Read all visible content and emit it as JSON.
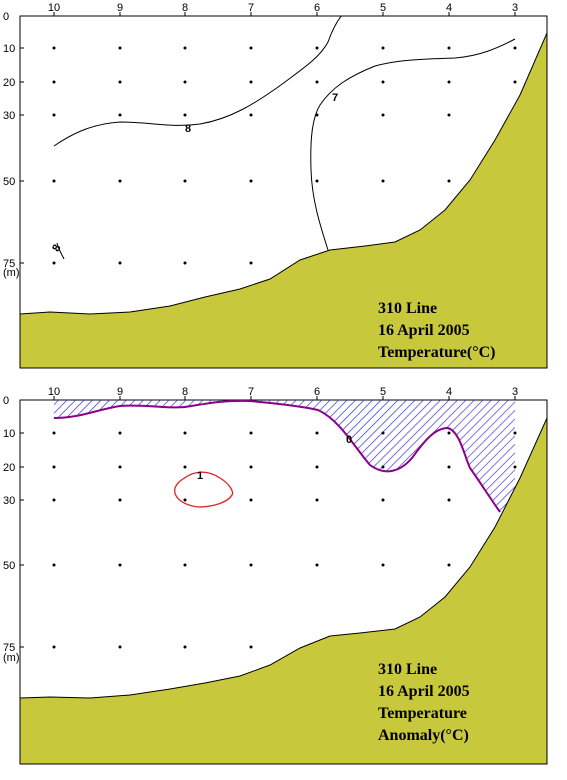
{
  "chart_data": [
    {
      "type": "contour",
      "x_ticks": [
        "10",
        "9",
        "8",
        "7",
        "6",
        "5",
        "4",
        "3"
      ],
      "y_ticks": [
        "0",
        "10",
        "20",
        "30",
        "50",
        "75"
      ],
      "y_unit": "(m)",
      "contour_labels": [
        "8",
        "7",
        "8"
      ],
      "info_lines": [
        "310 Line",
        "16 April 2005",
        "Temperature(°C)"
      ]
    },
    {
      "type": "contour",
      "x_ticks": [
        "10",
        "9",
        "8",
        "7",
        "6",
        "5",
        "4",
        "3"
      ],
      "y_ticks": [
        "0",
        "10",
        "20",
        "30",
        "50",
        "75"
      ],
      "y_unit": "(m)",
      "contour_labels": [
        "0",
        "1"
      ],
      "info_lines": [
        "310 Line",
        "16 April 2005",
        "Temperature",
        "Anomaly(°C)"
      ]
    }
  ],
  "colors": {
    "seabed": "#c8c83c",
    "zero_contour": "#8b008b",
    "hatch": "#2a2ad8",
    "positive_contour": "#e02020"
  }
}
